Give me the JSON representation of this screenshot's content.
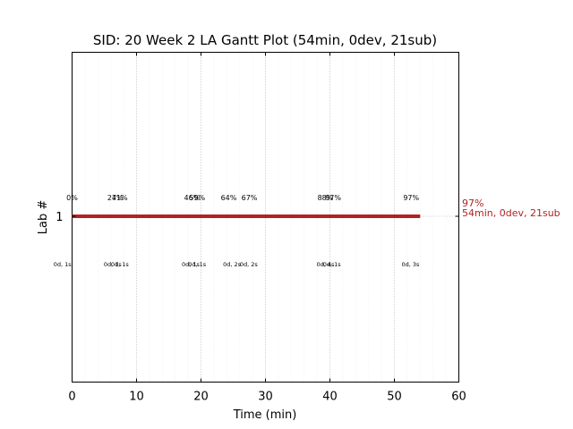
{
  "chart_data": {
    "type": "gantt",
    "title": "SID: 20 Week 2 LA Gantt Plot (54min, 0dev, 21sub)",
    "xlabel": "Time (min)",
    "ylabel": "Lab #",
    "xlim": [
      0,
      60
    ],
    "x_ticks": [
      "0",
      "10",
      "20",
      "30",
      "40",
      "50",
      "60"
    ],
    "y_ticks": [
      "1"
    ],
    "grid": "vertical dotted",
    "bar": {
      "lab": 1,
      "start": 0,
      "end": 54,
      "color": "#b22222"
    },
    "end_labels": [
      "97%",
      "54min, 0dev, 21sub"
    ],
    "accent_color": "#b22222",
    "pct_markers": [
      {
        "x": 0,
        "label": "0%"
      },
      {
        "x": 6.7,
        "label": "27%"
      },
      {
        "x": 7.4,
        "label": "41%"
      },
      {
        "x": 18.6,
        "label": "46%"
      },
      {
        "x": 19.4,
        "label": "59%"
      },
      {
        "x": 24.3,
        "label": "64%"
      },
      {
        "x": 27.5,
        "label": "67%"
      },
      {
        "x": 39.3,
        "label": "88%"
      },
      {
        "x": 40.5,
        "label": "97%"
      },
      {
        "x": 52.6,
        "label": "97%"
      }
    ],
    "sub_markers": [
      {
        "x": -1.5,
        "label": "0d, 1s"
      },
      {
        "x": 6.3,
        "label": "0d, 1s"
      },
      {
        "x": 7.4,
        "label": "0d, 1s"
      },
      {
        "x": 18.4,
        "label": "0d, 1s"
      },
      {
        "x": 19.4,
        "label": "0d, 1s"
      },
      {
        "x": 24.8,
        "label": "0d, 2s"
      },
      {
        "x": 27.4,
        "label": "0d, 2s"
      },
      {
        "x": 39.3,
        "label": "0d, 4s"
      },
      {
        "x": 40.3,
        "label": "0d, 1s"
      },
      {
        "x": 52.5,
        "label": "0d, 3s"
      }
    ]
  }
}
